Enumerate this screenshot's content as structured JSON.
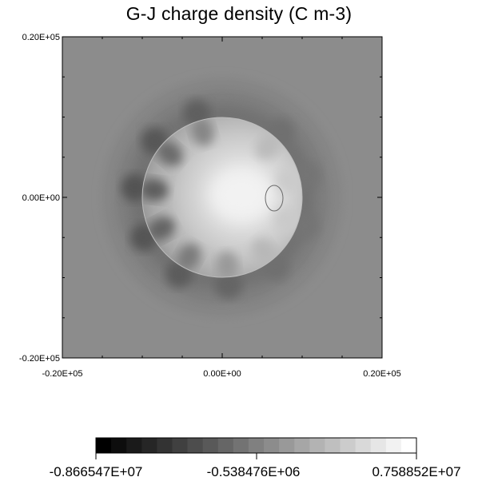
{
  "chart_data": {
    "type": "heatmap",
    "title": "G-J charge density (C m-3)",
    "xlabel": "",
    "ylabel": "",
    "xlim": [
      -20000,
      20000
    ],
    "ylim": [
      -20000,
      20000
    ],
    "x_tick_labels": [
      "-0.20E+05",
      "0.00E+00",
      "0.20E+05"
    ],
    "y_tick_labels": [
      "0.20E+05",
      "0.00E+00",
      "-0.20E+05"
    ],
    "x_tick_values": [
      -20000,
      0,
      20000
    ],
    "y_tick_values": [
      20000,
      0,
      -20000
    ],
    "colormap": "grayscale",
    "color_min": -8665470,
    "color_max": 7588520,
    "colorbar_labels": [
      "-0.866547E+07",
      "-0.538476E+06",
      "0.758852E+07"
    ],
    "colorbar_levels": 21,
    "colorbar_placement": "bottom",
    "background_color": "#8c8c8c",
    "features": {
      "central_disk_radius": 10000,
      "bright_spot_center": [
        3200,
        0
      ],
      "contour_loop_center": [
        6300,
        -100
      ],
      "dark_lobes": 10
    }
  }
}
